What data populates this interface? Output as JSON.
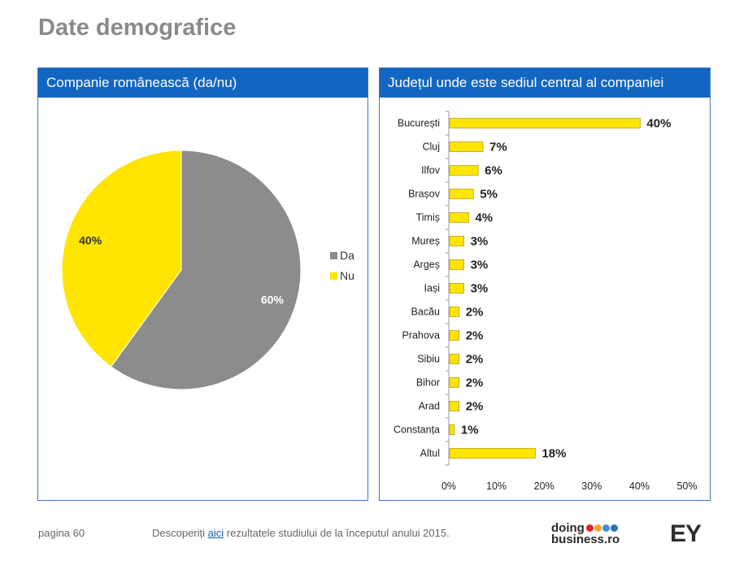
{
  "page": {
    "title": "Date demografice"
  },
  "left_panel": {
    "title": "Companie românească (da/nu)"
  },
  "right_panel": {
    "title": "Județul unde este sediul central al companiei"
  },
  "chart_data": [
    {
      "type": "pie",
      "title": "Companie românească (da/nu)",
      "labels": [
        "Da",
        "Nu"
      ],
      "values": [
        60,
        40
      ],
      "value_labels": [
        "60%",
        "40%"
      ],
      "colors": [
        "#8c8c8c",
        "#ffe500"
      ],
      "legend_position": "right"
    },
    {
      "type": "bar",
      "orientation": "horizontal",
      "title": "Județul unde este sediul central al companiei",
      "categories": [
        "București",
        "Cluj",
        "Ilfov",
        "Brașov",
        "Timiș",
        "Mureș",
        "Argeș",
        "Iași",
        "Bacău",
        "Prahova",
        "Sibiu",
        "Bihor",
        "Arad",
        "Constanța",
        "Altul"
      ],
      "values": [
        40,
        7,
        6,
        5,
        4,
        3,
        3,
        3,
        2,
        2,
        2,
        2,
        2,
        1,
        18
      ],
      "value_labels": [
        "40%",
        "7%",
        "6%",
        "5%",
        "4%",
        "3%",
        "3%",
        "3%",
        "2%",
        "2%",
        "2%",
        "2%",
        "2%",
        "1%",
        "18%"
      ],
      "xlim": [
        0,
        50
      ],
      "xticks": [
        "0%",
        "10%",
        "20%",
        "30%",
        "40%",
        "50%"
      ],
      "color": "#ffe500"
    }
  ],
  "footer": {
    "page_label": "pagina 60",
    "text_before": "Descoperiți",
    "link_text": "aici",
    "text_after": "rezultatele studiului de la începutul anului 2015."
  },
  "logos": {
    "doing": "doing",
    "business": "business.ro",
    "ey": "EY",
    "dot_colors": [
      "#e8222b",
      "#f5a623",
      "#3a8ee6",
      "#2f6fb8"
    ]
  }
}
